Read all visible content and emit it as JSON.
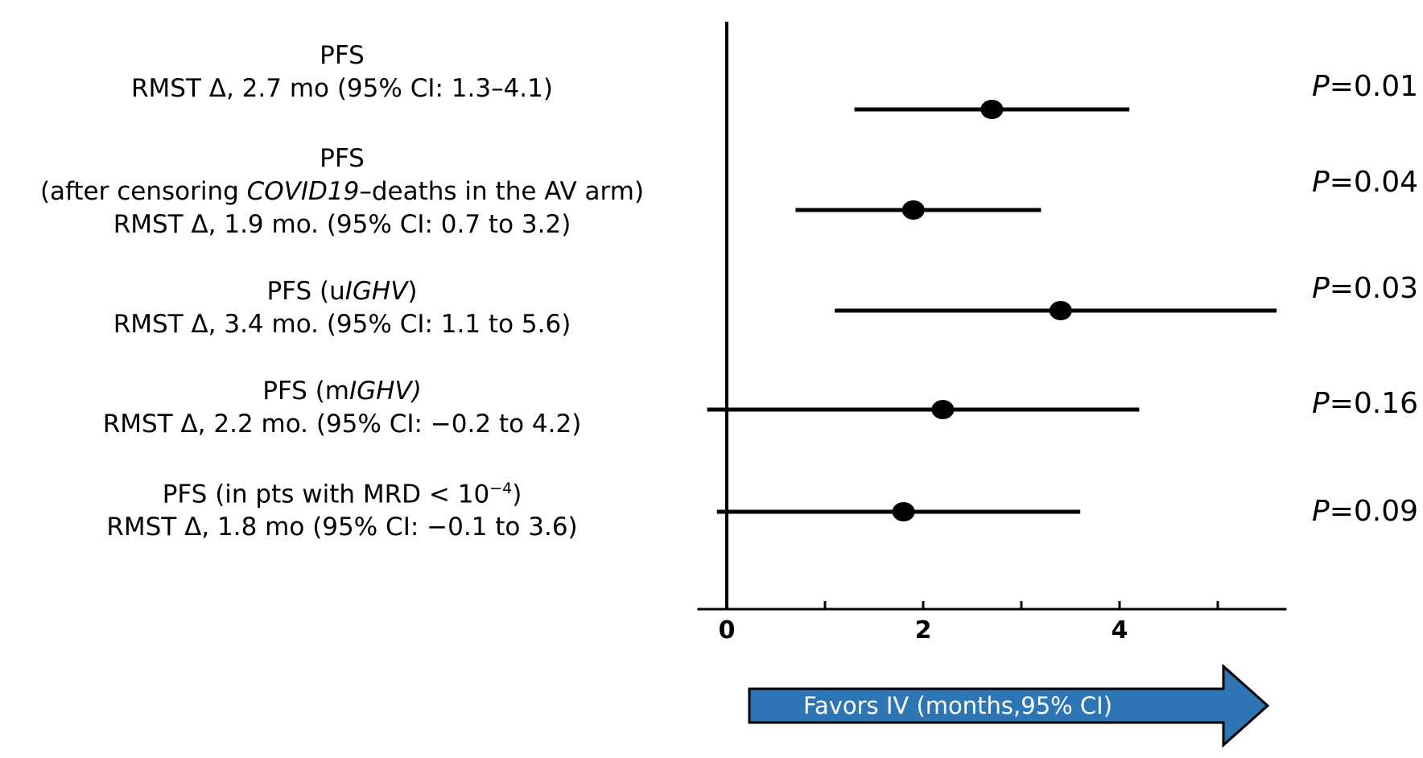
{
  "chart_data": {
    "type": "forest",
    "rows": [
      {
        "title": "PFS",
        "line2": "RMST Δ, 2.7 mo (95% CI: 1.3–4.1)",
        "estimate": 2.7,
        "ci_low": 1.3,
        "ci_high": 4.1,
        "p_prefix": "P",
        "p_value": "=0.01"
      },
      {
        "title": "PFS",
        "line2_before": "(after censoring ",
        "line2_italic": "COVID19",
        "line2_after": "–deaths in the AV arm)",
        "line3": "RMST Δ, 1.9 mo. (95% CI: 0.7 to 3.2)",
        "estimate": 1.9,
        "ci_low": 0.7,
        "ci_high": 3.2,
        "p_prefix": "P",
        "p_value": "=0.04"
      },
      {
        "title_before": "PFS (u",
        "title_italic": "IGHV",
        "title_after": ")",
        "line2": "RMST Δ, 3.4 mo. (95% CI: 1.1 to 5.6)",
        "estimate": 3.4,
        "ci_low": 1.1,
        "ci_high": 5.6,
        "p_prefix": "P",
        "p_value": "=0.03"
      },
      {
        "title_before": "PFS (m",
        "title_italic": "IGHV)",
        "title_after": "",
        "line2": "RMST Δ, 2.2 mo. (95% CI: −0.2 to 4.2)",
        "estimate": 2.2,
        "ci_low": -0.2,
        "ci_high": 4.2,
        "p_prefix": "P",
        "p_value": "=0.16"
      },
      {
        "title_before": "PFS (in pts with MRD < 10",
        "title_sup": "−4",
        "title_after": ")",
        "line2": "RMST Δ, 1.8 mo (95% CI: −0.1 to 3.6)",
        "estimate": 1.8,
        "ci_low": -0.1,
        "ci_high": 3.6,
        "p_prefix": "P",
        "p_value": "=0.09"
      }
    ],
    "x_axis": {
      "min": -0.3,
      "max": 5.7,
      "ticks": [
        0,
        1,
        2,
        3,
        4,
        5
      ],
      "tick_labels": [
        {
          "value": 0,
          "label": "0"
        },
        {
          "value": 2,
          "label": "2"
        },
        {
          "value": 4,
          "label": "4"
        }
      ],
      "null_line": 0
    },
    "arrow_label": "Favors IV (months,95% CI)",
    "colors": {
      "marker": "#000000",
      "arrow_fill": "#2e75b6",
      "arrow_stroke": "#000000",
      "arrow_text": "#ffffff"
    }
  }
}
